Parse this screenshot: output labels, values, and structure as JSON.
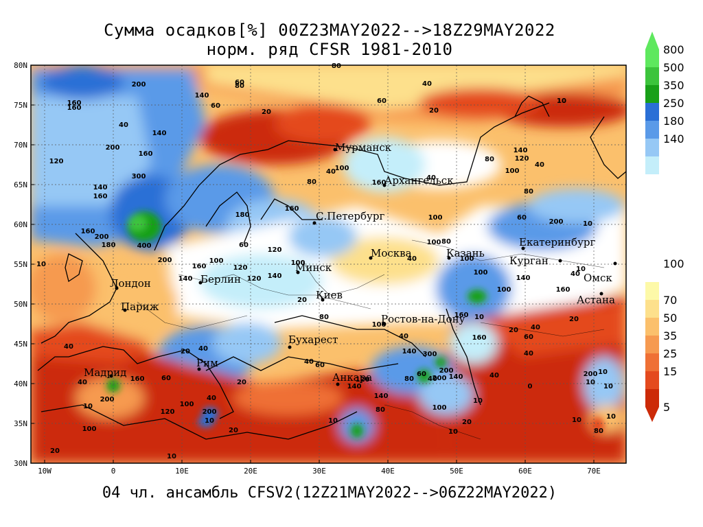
{
  "title_line1": "Сумма осадков[%] 00Z23MAY2022-->18Z29MAY2022",
  "title_line2": "норм. ряд CFSR 1981-2010",
  "footer": "04 чл. ансамбль CFSV2(12Z21MAY2022-->06Z22MAY2022)",
  "lat_labels": [
    "80N",
    "75N",
    "70N",
    "65N",
    "60N",
    "55N",
    "50N",
    "45N",
    "40N",
    "35N",
    "30N"
  ],
  "lon_labels": [
    "10W",
    "0",
    "10E",
    "20E",
    "30E",
    "40E",
    "50E",
    "60E",
    "70E"
  ],
  "colorbar": {
    "upper": [
      {
        "label": "800",
        "color": "#5ee85e"
      },
      {
        "label": "500",
        "color": "#3cc43c"
      },
      {
        "label": "350",
        "color": "#18a018"
      },
      {
        "label": "250",
        "color": "#2a6fd6"
      },
      {
        "label": "180",
        "color": "#5a9ae8"
      },
      {
        "label": "140",
        "color": "#96c8f5"
      },
      {
        "label": "",
        "color": "#c4eefa"
      }
    ],
    "middle_label": "100",
    "lower": [
      {
        "label": "70",
        "color": "#fdf9a8"
      },
      {
        "label": "50",
        "color": "#fde08c"
      },
      {
        "label": "35",
        "color": "#fbc06c"
      },
      {
        "label": "25",
        "color": "#f69a50"
      },
      {
        "label": "15",
        "color": "#ef7035"
      },
      {
        "label": "",
        "color": "#e44a1e"
      },
      {
        "label": "5",
        "color": "#cc2a08"
      }
    ]
  },
  "cities": [
    {
      "name": "Мурманск"
    },
    {
      "name": "Архангельск"
    },
    {
      "name": "С.Петербург"
    },
    {
      "name": "Москва"
    },
    {
      "name": "Казань"
    },
    {
      "name": "Екатеринбург"
    },
    {
      "name": "Курган"
    },
    {
      "name": "Омск"
    },
    {
      "name": "Астана"
    },
    {
      "name": "Минск"
    },
    {
      "name": "Берлин"
    },
    {
      "name": "Лондон"
    },
    {
      "name": "Париж"
    },
    {
      "name": "Киев"
    },
    {
      "name": "Ростов-на-Дону"
    },
    {
      "name": "Бухарест"
    },
    {
      "name": "Рим"
    },
    {
      "name": "Мадрид"
    },
    {
      "name": "Анкара"
    }
  ],
  "contour_labels": [
    "200",
    "160",
    "160",
    "140",
    "60",
    "20",
    "80",
    "40",
    "60",
    "20",
    "10",
    "60",
    "80",
    "40",
    "140",
    "200",
    "160",
    "300",
    "140",
    "160",
    "120",
    "160",
    "400",
    "200",
    "100",
    "120",
    "140",
    "160",
    "120",
    "200",
    "180",
    "140",
    "100",
    "120",
    "160",
    "180",
    "60",
    "40",
    "160",
    "100",
    "80",
    "40",
    "100",
    "100",
    "40",
    "100",
    "80",
    "60",
    "40",
    "80",
    "120",
    "100",
    "80",
    "200",
    "10",
    "10",
    "100",
    "140",
    "160",
    "40",
    "200",
    "10",
    "20",
    "100",
    "10",
    "60",
    "160",
    "120",
    "20",
    "40",
    "20",
    "100",
    "40",
    "200",
    "10",
    "20",
    "40",
    "200",
    "100",
    "10",
    "80",
    "140",
    "120",
    "140",
    "200",
    "10",
    "0",
    "40",
    "40",
    "20",
    "60",
    "40",
    "160",
    "10",
    "40",
    "140",
    "80",
    "60",
    "160",
    "100",
    "140",
    "40",
    "300",
    "10",
    "20",
    "10",
    "200",
    "10",
    "80",
    "10",
    "10",
    "10",
    "40",
    "10",
    "20",
    "60",
    "100",
    "140",
    "80",
    "20",
    "40",
    "10"
  ],
  "colors": {
    "dry": "#cc2a08",
    "wet": "#2a6fd6",
    "normal": "#ffffff"
  }
}
